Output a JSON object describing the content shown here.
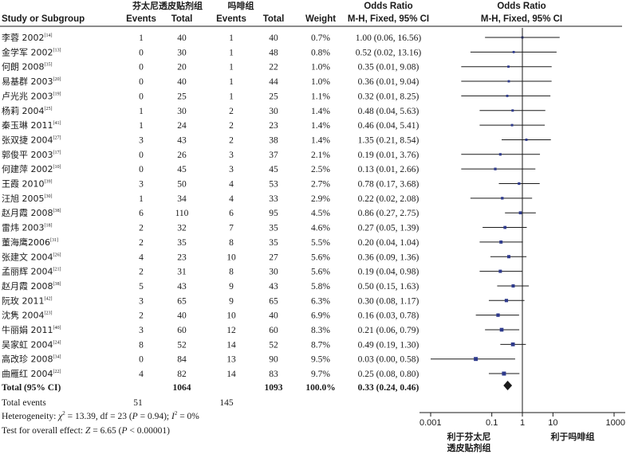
{
  "groups": {
    "experimental": "芬太尼透皮贴剂组",
    "control": "吗啡组",
    "effect_title": "Odds Ratio",
    "plot_title": "Odds Ratio"
  },
  "columns": {
    "study": "Study or Subgroup",
    "events_e": "Events",
    "total_e": "Total",
    "events_c": "Events",
    "total_c": "Total",
    "weight": "Weight",
    "method": "M-H, Fixed, 95% CI",
    "plot_method": "M-H, Fixed, 95% CI"
  },
  "chart_data": {
    "type": "forest",
    "x_scale": "log",
    "xlim": [
      0.001,
      1000
    ],
    "x_ticks": [
      "0.001",
      "0.1",
      "1",
      "10",
      "1000"
    ],
    "x_tick_values": [
      0.001,
      0.1,
      1,
      10,
      1000
    ],
    "favors_left": [
      "利于芬太尼",
      "透皮贴剂组"
    ],
    "favors_right": "利于吗啡组",
    "studies": [
      {
        "name": "李蓉 2002",
        "ref": "[14]",
        "events_e": "1",
        "total_e": "40",
        "events_c": "1",
        "total_c": "40",
        "weight": "0.7%",
        "ci_text": "1.00 (0.06, 16.56)",
        "or": 1.0,
        "lo": 0.06,
        "hi": 16.56
      },
      {
        "name": "金学军 2002",
        "ref": "[13]",
        "events_e": "0",
        "total_e": "30",
        "events_c": "1",
        "total_c": "48",
        "weight": "0.8%",
        "ci_text": "0.52 (0.02, 13.16)",
        "or": 0.52,
        "lo": 0.02,
        "hi": 13.16
      },
      {
        "name": "何朗 2008",
        "ref": "[35]",
        "events_e": "0",
        "total_e": "20",
        "events_c": "1",
        "total_c": "22",
        "weight": "1.0%",
        "ci_text": "0.35 (0.01, 9.08)",
        "or": 0.35,
        "lo": 0.01,
        "hi": 9.08
      },
      {
        "name": "易基群 2003",
        "ref": "[20]",
        "events_e": "0",
        "total_e": "40",
        "events_c": "1",
        "total_c": "44",
        "weight": "1.0%",
        "ci_text": "0.36 (0.01, 9.04)",
        "or": 0.36,
        "lo": 0.01,
        "hi": 9.04
      },
      {
        "name": "卢光兆 2003",
        "ref": "[19]",
        "events_e": "0",
        "total_e": "25",
        "events_c": "1",
        "total_c": "25",
        "weight": "1.1%",
        "ci_text": "0.32 (0.01, 8.25)",
        "or": 0.32,
        "lo": 0.01,
        "hi": 8.25
      },
      {
        "name": "杨莉 2004",
        "ref": "[25]",
        "events_e": "1",
        "total_e": "30",
        "events_c": "2",
        "total_c": "30",
        "weight": "1.4%",
        "ci_text": "0.48 (0.04, 5.63)",
        "or": 0.48,
        "lo": 0.04,
        "hi": 5.63
      },
      {
        "name": "秦玉琳 2011",
        "ref": "[41]",
        "events_e": "1",
        "total_e": "24",
        "events_c": "2",
        "total_c": "23",
        "weight": "1.4%",
        "ci_text": "0.46 (0.04, 5.41)",
        "or": 0.46,
        "lo": 0.04,
        "hi": 5.41
      },
      {
        "name": "张双捷 2004",
        "ref": "[27]",
        "events_e": "3",
        "total_e": "43",
        "events_c": "2",
        "total_c": "38",
        "weight": "1.4%",
        "ci_text": "1.35 (0.21, 8.54)",
        "or": 1.35,
        "lo": 0.21,
        "hi": 8.54
      },
      {
        "name": "郭俊平 2003",
        "ref": "[17]",
        "events_e": "0",
        "total_e": "26",
        "events_c": "3",
        "total_c": "37",
        "weight": "2.1%",
        "ci_text": "0.19 (0.01, 3.76)",
        "or": 0.19,
        "lo": 0.01,
        "hi": 3.76
      },
      {
        "name": "何建萍 2002",
        "ref": "[10]",
        "events_e": "0",
        "total_e": "45",
        "events_c": "3",
        "total_c": "45",
        "weight": "2.5%",
        "ci_text": "0.13 (0.01, 2.66)",
        "or": 0.13,
        "lo": 0.01,
        "hi": 2.66
      },
      {
        "name": "王霞 2010",
        "ref": "[39]",
        "events_e": "3",
        "total_e": "50",
        "events_c": "4",
        "total_c": "53",
        "weight": "2.7%",
        "ci_text": "0.78 (0.17, 3.68)",
        "or": 0.78,
        "lo": 0.17,
        "hi": 3.68
      },
      {
        "name": "汪旭 2005",
        "ref": "[30]",
        "events_e": "1",
        "total_e": "34",
        "events_c": "4",
        "total_c": "33",
        "weight": "2.9%",
        "ci_text": "0.22 (0.02, 2.08)",
        "or": 0.22,
        "lo": 0.02,
        "hi": 2.08
      },
      {
        "name": "赵月霞 2008",
        "ref": "[38]",
        "events_e": "6",
        "total_e": "110",
        "events_c": "6",
        "total_c": "95",
        "weight": "4.5%",
        "ci_text": "0.86 (0.27, 2.75)",
        "or": 0.86,
        "lo": 0.27,
        "hi": 2.75
      },
      {
        "name": "雷炜 2003",
        "ref": "[18]",
        "events_e": "2",
        "total_e": "32",
        "events_c": "7",
        "total_c": "35",
        "weight": "4.6%",
        "ci_text": "0.27 (0.05, 1.39)",
        "or": 0.27,
        "lo": 0.05,
        "hi": 1.39
      },
      {
        "name": "董海鹰2006",
        "ref": "[31]",
        "events_e": "2",
        "total_e": "35",
        "events_c": "8",
        "total_c": "35",
        "weight": "5.5%",
        "ci_text": "0.20 (0.04, 1.04)",
        "or": 0.2,
        "lo": 0.04,
        "hi": 1.04
      },
      {
        "name": "张建文 2004",
        "ref": "[26]",
        "events_e": "4",
        "total_e": "23",
        "events_c": "10",
        "total_c": "27",
        "weight": "5.6%",
        "ci_text": "0.36 (0.09, 1.36)",
        "or": 0.36,
        "lo": 0.09,
        "hi": 1.36
      },
      {
        "name": "孟丽辉 2004",
        "ref": "[21]",
        "events_e": "2",
        "total_e": "31",
        "events_c": "8",
        "total_c": "30",
        "weight": "5.6%",
        "ci_text": "0.19 (0.04, 0.98)",
        "or": 0.19,
        "lo": 0.04,
        "hi": 0.98
      },
      {
        "name": "赵月霞 2008",
        "ref": "[38]",
        "events_e": "5",
        "total_e": "43",
        "events_c": "9",
        "total_c": "43",
        "weight": "5.8%",
        "ci_text": "0.50 (0.15, 1.63)",
        "or": 0.5,
        "lo": 0.15,
        "hi": 1.63
      },
      {
        "name": "阮玫 2011",
        "ref": "[42]",
        "events_e": "3",
        "total_e": "65",
        "events_c": "9",
        "total_c": "65",
        "weight": "6.3%",
        "ci_text": "0.30 (0.08, 1.17)",
        "or": 0.3,
        "lo": 0.08,
        "hi": 1.17
      },
      {
        "name": "沈隽 2004",
        "ref": "[23]",
        "events_e": "2",
        "total_e": "40",
        "events_c": "10",
        "total_c": "40",
        "weight": "6.9%",
        "ci_text": "0.16 (0.03, 0.78)",
        "or": 0.16,
        "lo": 0.03,
        "hi": 0.78
      },
      {
        "name": "牛丽娟 2011",
        "ref": "[40]",
        "events_e": "3",
        "total_e": "60",
        "events_c": "12",
        "total_c": "60",
        "weight": "8.3%",
        "ci_text": "0.21 (0.06, 0.79)",
        "or": 0.21,
        "lo": 0.06,
        "hi": 0.79
      },
      {
        "name": "吴家虹 2004",
        "ref": "[24]",
        "events_e": "8",
        "total_e": "52",
        "events_c": "14",
        "total_c": "52",
        "weight": "8.7%",
        "ci_text": "0.49 (0.19, 1.30)",
        "or": 0.49,
        "lo": 0.19,
        "hi": 1.3
      },
      {
        "name": "高改珍 2008",
        "ref": "[34]",
        "events_e": "0",
        "total_e": "84",
        "events_c": "13",
        "total_c": "90",
        "weight": "9.5%",
        "ci_text": "0.03 (0.00, 0.58)",
        "or": 0.03,
        "lo": 0.0005,
        "hi": 0.58
      },
      {
        "name": "曲雁红 2004",
        "ref": "[22]",
        "events_e": "4",
        "total_e": "82",
        "events_c": "14",
        "total_c": "83",
        "weight": "9.7%",
        "ci_text": "0.25 (0.08, 0.80)",
        "or": 0.25,
        "lo": 0.08,
        "hi": 0.8
      }
    ],
    "total": {
      "label": "Total (95% CI)",
      "total_e": "1064",
      "total_c": "1093",
      "weight": "100.0%",
      "ci_text": "0.33 (0.24, 0.46)",
      "or": 0.33,
      "lo": 0.24,
      "hi": 0.46
    },
    "total_events": {
      "label": "Total events",
      "events_e": "51",
      "events_c": "145"
    },
    "heterogeneity": {
      "prefix": "Heterogeneity: ",
      "chi": "χ",
      "chi_sup": "2",
      "rest1": " = 13.39, df = 23 (",
      "p": "P",
      "rest2": " = 0.94); ",
      "i": "I",
      "i_sup": "2",
      "rest3": " = 0%"
    },
    "overall": {
      "prefix": "Test for overall effect: ",
      "z": "Z",
      "rest1": " = 6.65 (",
      "p": "P",
      "rest2": " < 0.00001)"
    }
  }
}
